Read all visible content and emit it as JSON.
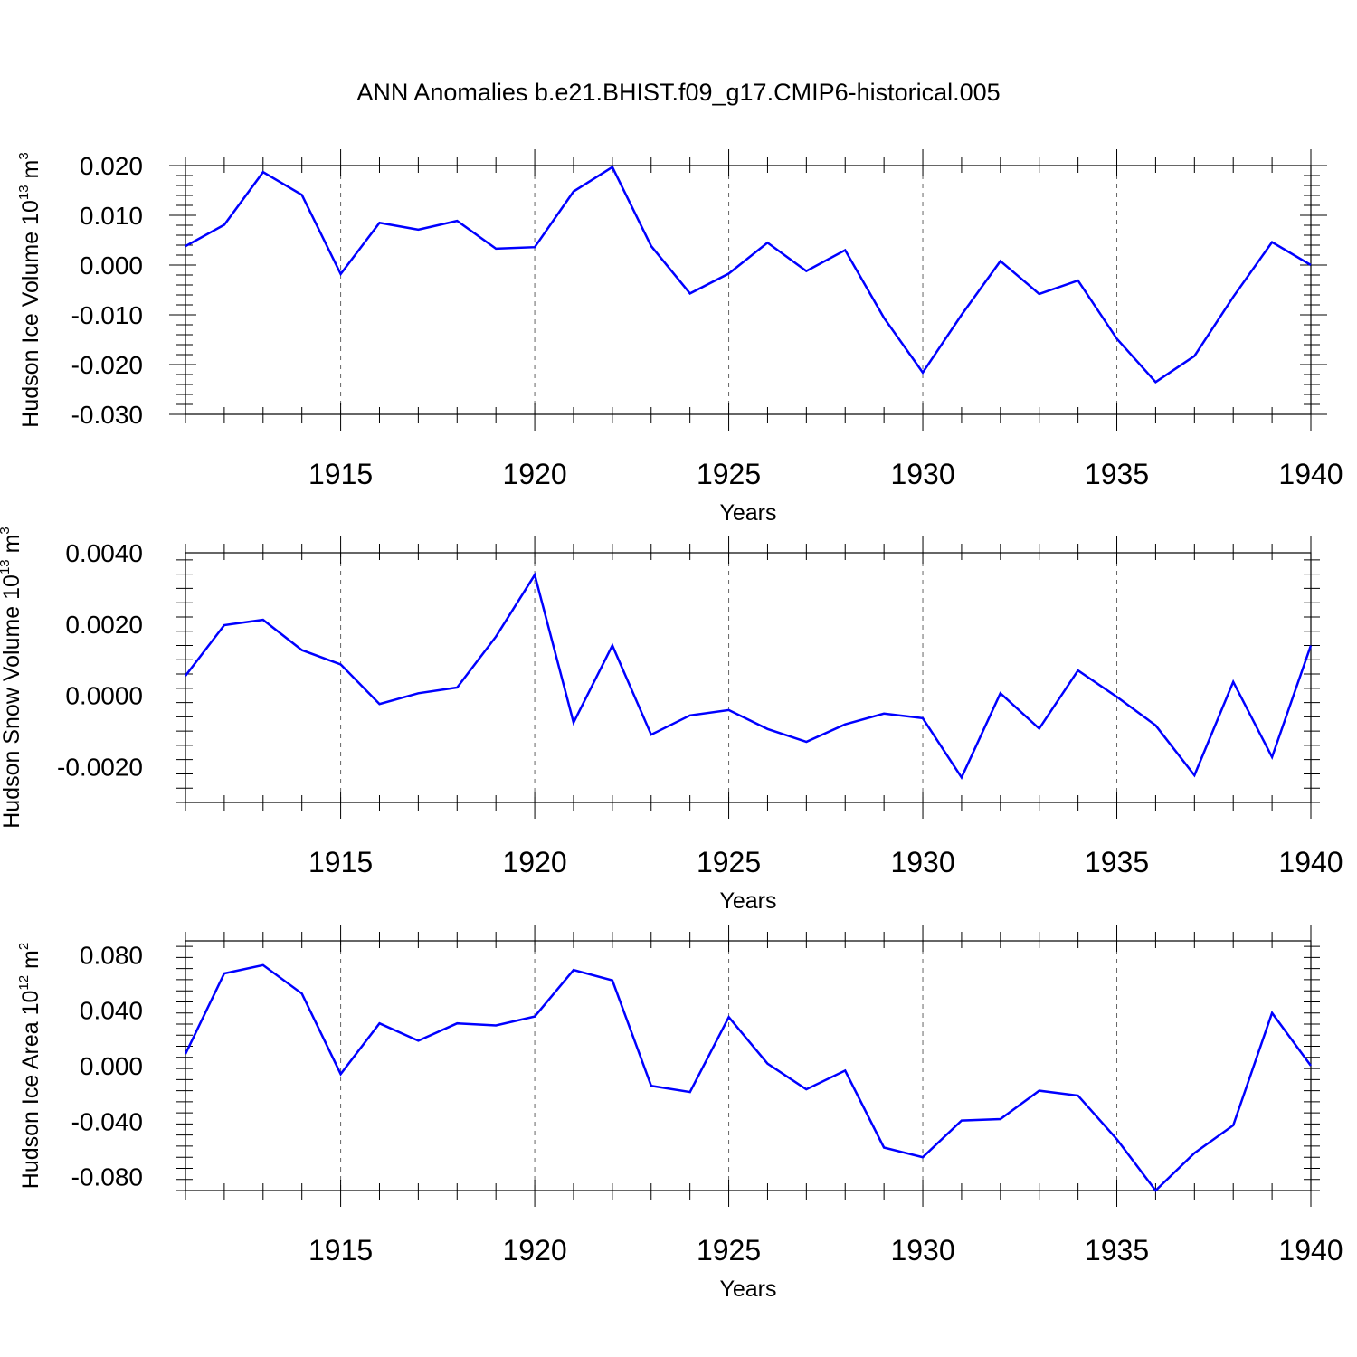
{
  "title": "ANN Anomalies b.e21.BHIST.f09_g17.CMIP6-historical.005",
  "chart_data": [
    {
      "type": "line",
      "name": "ice-volume",
      "title": "ANN Anomalies b.e21.BHIST.f09_g17.CMIP6-historical.005",
      "xlabel": "Years",
      "ylabel": "Hudson Ice Volume 10",
      "ylabel_sup": "13",
      "ylabel_unit": " m",
      "ylabel_unit_sup": "3",
      "xlim": [
        1911,
        1940
      ],
      "ylim": [
        -0.03,
        0.02
      ],
      "x_ticks": [
        1915,
        1920,
        1925,
        1930,
        1935,
        1940
      ],
      "y_ticks": [
        -0.03,
        -0.02,
        -0.01,
        0.0,
        0.01,
        0.02
      ],
      "y_tick_labels": [
        "-0.030",
        "-0.020",
        "-0.010",
        "0.000",
        "0.010",
        "0.020"
      ],
      "grid": "vertical dashed at major x ticks",
      "series": [
        {
          "name": "Hudson Ice Volume",
          "color": "#0000ff",
          "x": [
            1911,
            1912,
            1913,
            1914,
            1915,
            1916,
            1917,
            1918,
            1919,
            1920,
            1921,
            1922,
            1923,
            1924,
            1925,
            1926,
            1927,
            1928,
            1929,
            1930,
            1931,
            1932,
            1933,
            1934,
            1935,
            1936,
            1937,
            1938,
            1939,
            1940
          ],
          "values": [
            0.0038,
            0.0081,
            0.0187,
            0.0141,
            -0.0018,
            0.0085,
            0.0071,
            0.0089,
            0.0033,
            0.0036,
            0.0148,
            0.0197,
            0.0038,
            -0.0057,
            -0.0017,
            0.0045,
            -0.0012,
            0.003,
            -0.0106,
            -0.0216,
            -0.01,
            0.0008,
            -0.0058,
            -0.0031,
            -0.0148,
            -0.0235,
            -0.0183,
            -0.0064,
            0.0046,
            0.0
          ]
        }
      ]
    },
    {
      "type": "line",
      "name": "snow-volume",
      "xlabel": "Years",
      "ylabel": "Hudson Snow Volume 10",
      "ylabel_sup": "13",
      "ylabel_unit": " m",
      "ylabel_unit_sup": "3",
      "xlim": [
        1911,
        1940
      ],
      "ylim": [
        -0.003,
        0.004
      ],
      "x_ticks": [
        1915,
        1920,
        1925,
        1930,
        1935,
        1940
      ],
      "y_ticks": [
        -0.002,
        0.0,
        0.002,
        0.004
      ],
      "y_tick_labels": [
        "-0.0020",
        "0.0000",
        "0.0020",
        "0.0040"
      ],
      "grid": "vertical dashed at major x ticks",
      "series": [
        {
          "name": "Hudson Snow Volume",
          "color": "#0000ff",
          "x": [
            1911,
            1912,
            1913,
            1914,
            1915,
            1916,
            1917,
            1918,
            1919,
            1920,
            1921,
            1922,
            1923,
            1924,
            1925,
            1926,
            1927,
            1928,
            1929,
            1930,
            1931,
            1932,
            1933,
            1934,
            1935,
            1936,
            1937,
            1938,
            1939,
            1940
          ],
          "values": [
            0.00055,
            0.00197,
            0.00212,
            0.00127,
            0.00087,
            -0.00024,
            6e-05,
            0.00022,
            0.00165,
            0.00338,
            -0.00076,
            0.0014,
            -0.0011,
            -0.00056,
            -0.00041,
            -0.00094,
            -0.0013,
            -0.00081,
            -0.00051,
            -0.00064,
            -0.0023,
            6e-05,
            -0.00093,
            0.0007,
            -4e-05,
            -0.00084,
            -0.00224,
            0.00038,
            -0.00173,
            0.0014
          ]
        }
      ]
    },
    {
      "type": "line",
      "name": "ice-area",
      "xlabel": "Years",
      "ylabel": "Hudson Ice Area 10",
      "ylabel_sup": "12",
      "ylabel_unit": " m",
      "ylabel_unit_sup": "2",
      "xlim": [
        1911,
        1940
      ],
      "ylim": [
        -0.09,
        0.09
      ],
      "x_ticks": [
        1915,
        1920,
        1925,
        1930,
        1935,
        1940
      ],
      "y_ticks": [
        -0.08,
        -0.04,
        0.0,
        0.04,
        0.08
      ],
      "y_tick_labels": [
        "-0.080",
        "-0.040",
        "0.000",
        "0.040",
        "0.080"
      ],
      "grid": "vertical dashed at major x ticks",
      "series": [
        {
          "name": "Hudson Ice Area",
          "color": "#0000ff",
          "x": [
            1911,
            1912,
            1913,
            1914,
            1915,
            1916,
            1917,
            1918,
            1919,
            1920,
            1921,
            1922,
            1923,
            1924,
            1925,
            1926,
            1927,
            1928,
            1929,
            1930,
            1931,
            1932,
            1933,
            1934,
            1935,
            1936,
            1937,
            1938,
            1939,
            1940
          ],
          "values": [
            0.0085,
            0.0665,
            0.0725,
            0.052,
            -0.006,
            0.0305,
            0.018,
            0.0305,
            0.029,
            0.0355,
            0.069,
            0.0615,
            -0.0145,
            -0.019,
            0.035,
            0.0015,
            -0.017,
            -0.0035,
            -0.059,
            -0.066,
            -0.0395,
            -0.0385,
            -0.018,
            -0.0215,
            -0.053,
            -0.09,
            -0.063,
            -0.043,
            0.038,
            0.0
          ]
        }
      ]
    }
  ]
}
